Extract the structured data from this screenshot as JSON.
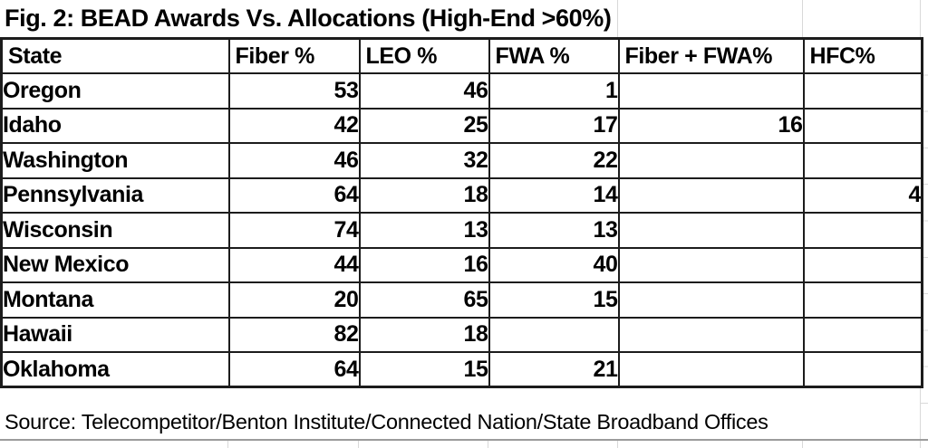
{
  "figure": {
    "title": "Fig. 2: BEAD Awards Vs. Allocations (High-End >60%)",
    "source": "Source: Telecompetitor/Benton Institute/Connected Nation/State Broadband Offices"
  },
  "chart_data": {
    "type": "table",
    "title": "Fig. 2: BEAD Awards Vs. Allocations (High-End >60%)",
    "columns": [
      "State",
      "Fiber %",
      "LEO %",
      "FWA %",
      "Fiber + FWA%",
      "HFC%"
    ],
    "rows": [
      [
        "Oregon",
        "53",
        "46",
        "1",
        "",
        ""
      ],
      [
        "Idaho",
        "42",
        "25",
        "17",
        "16",
        ""
      ],
      [
        "Washington",
        "46",
        "32",
        "22",
        "",
        ""
      ],
      [
        "Pennsylvania",
        "64",
        "18",
        "14",
        "",
        "4"
      ],
      [
        "Wisconsin",
        "74",
        "13",
        "13",
        "",
        ""
      ],
      [
        "New Mexico",
        "44",
        "16",
        "40",
        "",
        ""
      ],
      [
        "Montana",
        "20",
        "65",
        "15",
        "",
        ""
      ],
      [
        "Hawaii",
        "82",
        "18",
        "",
        "",
        ""
      ],
      [
        "Oklahoma",
        "64",
        "15",
        "21",
        "",
        ""
      ]
    ],
    "source": "Source: Telecompetitor/Benton Institute/Connected Nation/State Broadband Offices",
    "layout": {
      "grid": "black table borders",
      "legend": "none",
      "units": "percent"
    }
  },
  "colors": {
    "background": "#ffffff",
    "text": "#000000",
    "table_border": "#1c1c1c",
    "sheet_gridline": "#d9d9d9",
    "source_divider": "#9b9b9b"
  }
}
